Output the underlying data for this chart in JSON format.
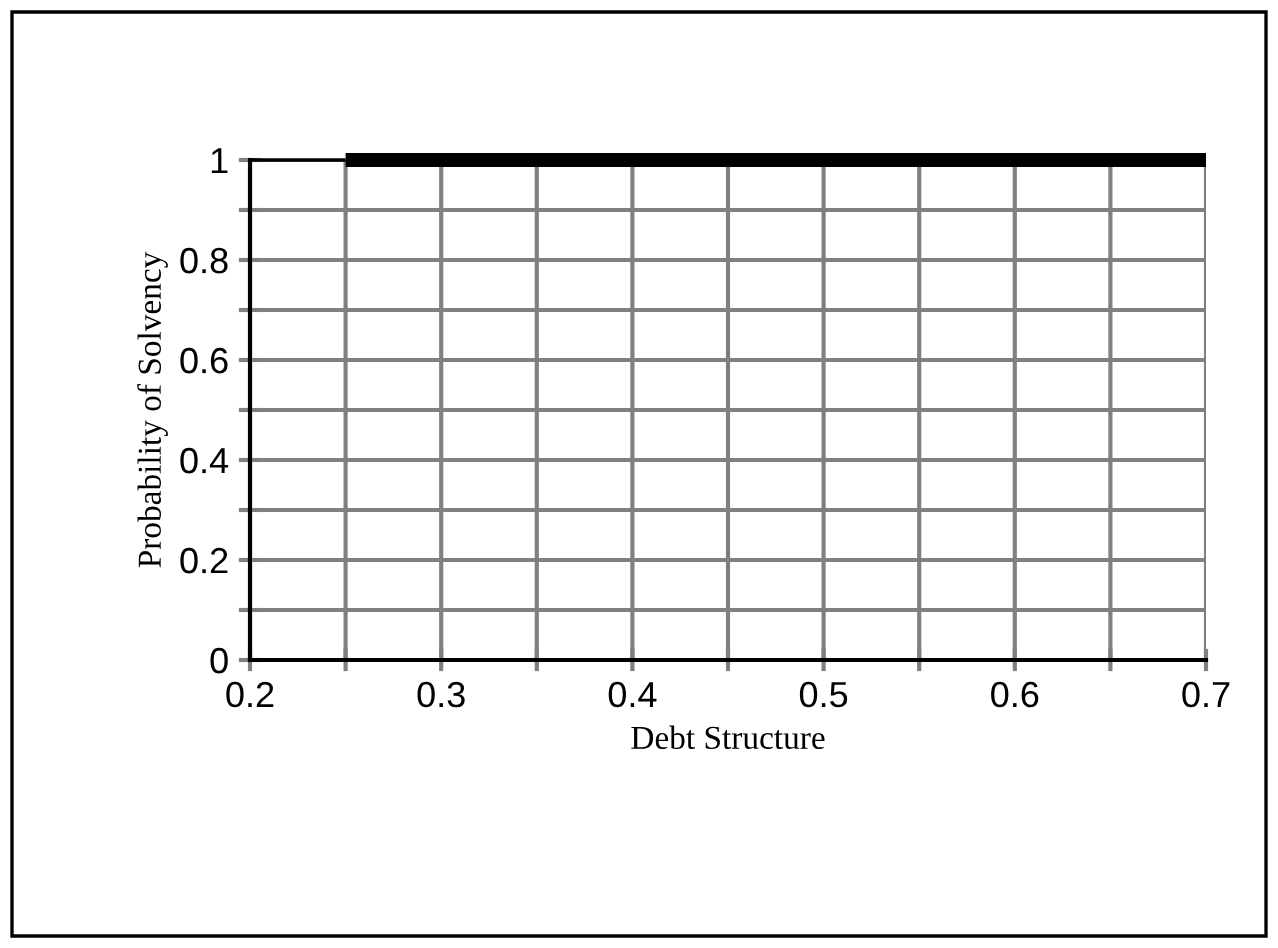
{
  "chart_data": {
    "type": "line",
    "xlabel": "Debt Structure",
    "ylabel": "Probability of Solvency",
    "series": [
      {
        "color": "#000000",
        "x": [
          0.25,
          0.3,
          0.35,
          0.4,
          0.45,
          0.5,
          0.55,
          0.6,
          0.65,
          0.7
        ],
        "values": [
          1,
          1,
          1,
          1,
          1,
          1,
          1,
          1,
          1,
          1
        ]
      },
      {
        "color": "#000000",
        "x": [
          0.2,
          0.25
        ],
        "values": [
          1,
          1
        ]
      }
    ],
    "xlim": [
      0.2,
      0.7
    ],
    "ylim": [
      0,
      1
    ],
    "xticks": [
      0.2,
      {
        "value": 0.25,
        "label": null
      },
      0.3,
      {
        "value": 0.35,
        "label": null
      },
      0.4,
      {
        "value": 0.45,
        "label": null
      },
      0.5,
      {
        "value": 0.55,
        "label": null
      },
      0.6,
      {
        "value": 0.65,
        "label": null
      },
      0.7
    ],
    "yticks": [
      0,
      {
        "value": 0.1,
        "label": null
      },
      0.2,
      {
        "value": 0.3,
        "label": null
      },
      0.4,
      {
        "value": 0.5,
        "label": null
      },
      0.6,
      {
        "value": 0.7,
        "label": null
      },
      0.8,
      {
        "value": 0.9,
        "label": null
      },
      1
    ],
    "grid": true,
    "marker": "none",
    "line_style": "solid",
    "legend": false
  }
}
